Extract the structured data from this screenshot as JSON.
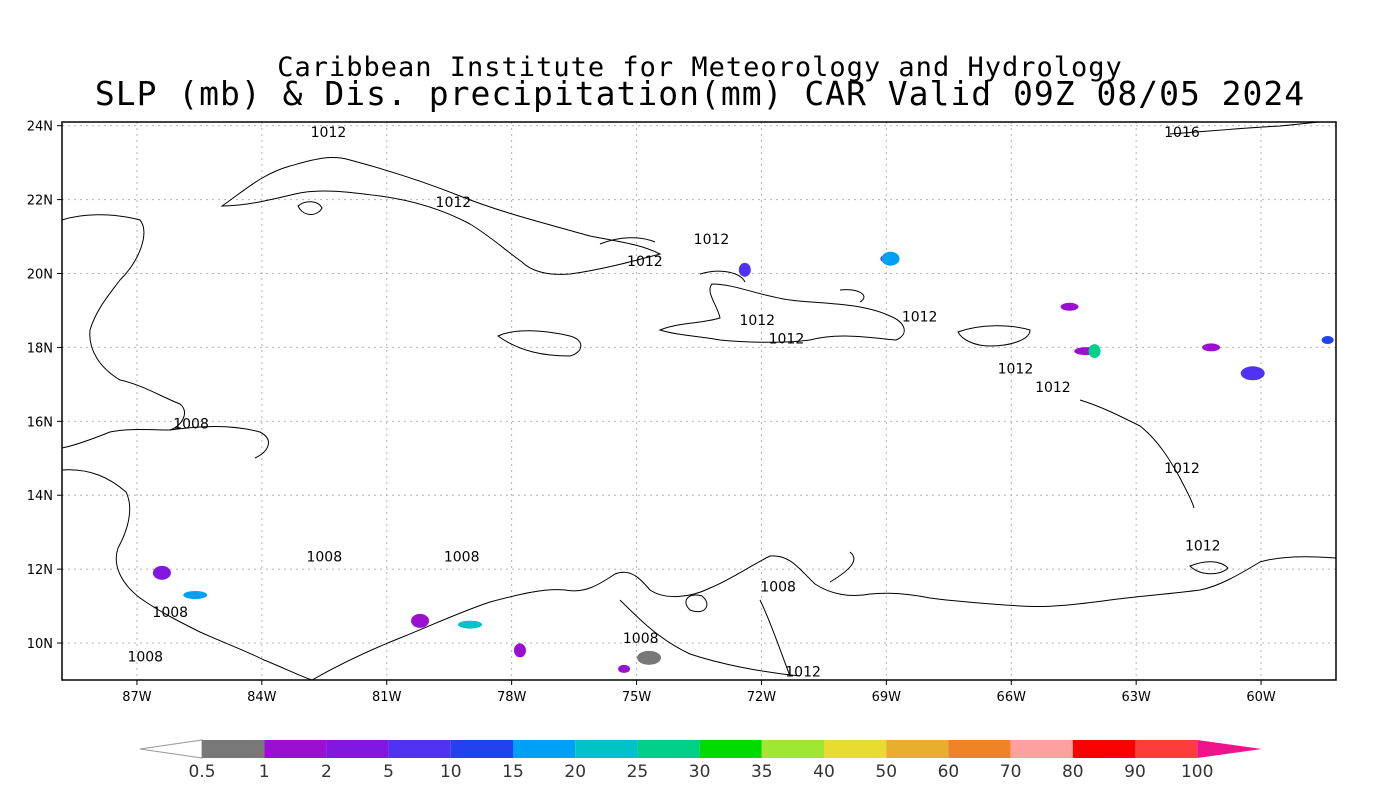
{
  "title_line1": "Caribbean Institute for Meteorology and Hydrology",
  "title_line2": "SLP (mb) & Dis. precipitation(mm) CAR Valid 09Z 08/05 2024",
  "lon_ticks": [
    "87W",
    "84W",
    "81W",
    "78W",
    "75W",
    "72W",
    "69W",
    "66W",
    "63W",
    "60W"
  ],
  "lat_ticks": [
    "24N",
    "22N",
    "20N",
    "18N",
    "16N",
    "14N",
    "12N",
    "10N"
  ],
  "isobar_labels": [
    {
      "text": "1012",
      "lon": -82.4,
      "lat": 23.7
    },
    {
      "text": "1016",
      "lon": -61.9,
      "lat": 23.7
    },
    {
      "text": "1012",
      "lon": -79.4,
      "lat": 21.8
    },
    {
      "text": "1012",
      "lon": -73.2,
      "lat": 20.8
    },
    {
      "text": "1012",
      "lon": -74.8,
      "lat": 20.2
    },
    {
      "text": "1012",
      "lon": -72.1,
      "lat": 18.6
    },
    {
      "text": "1012",
      "lon": -68.2,
      "lat": 18.7
    },
    {
      "text": "1012",
      "lon": -71.4,
      "lat": 18.1
    },
    {
      "text": "1012",
      "lon": -65.9,
      "lat": 17.3
    },
    {
      "text": "1012",
      "lon": -65.0,
      "lat": 16.8
    },
    {
      "text": "1012",
      "lon": -61.9,
      "lat": 14.6
    },
    {
      "text": "1012",
      "lon": -61.4,
      "lat": 12.5
    },
    {
      "text": "1008",
      "lon": -85.7,
      "lat": 15.8
    },
    {
      "text": "1008",
      "lon": -82.5,
      "lat": 12.2
    },
    {
      "text": "1008",
      "lon": -79.2,
      "lat": 12.2
    },
    {
      "text": "1008",
      "lon": -71.6,
      "lat": 11.4
    },
    {
      "text": "1008",
      "lon": -86.2,
      "lat": 10.7
    },
    {
      "text": "1008",
      "lon": -74.9,
      "lat": 10.0
    },
    {
      "text": "1008",
      "lon": -86.8,
      "lat": 9.5
    },
    {
      "text": "1012",
      "lon": -71.0,
      "lat": 9.1
    }
  ],
  "colorbar": {
    "labels": [
      "0.5",
      "1",
      "2",
      "5",
      "10",
      "15",
      "20",
      "25",
      "30",
      "35",
      "40",
      "50",
      "60",
      "70",
      "80",
      "90",
      "100"
    ],
    "colors": [
      "#787878",
      "#9b0fd0",
      "#8217e0",
      "#5232f2",
      "#2242f0",
      "#00a0f7",
      "#00c3c8",
      "#00d089",
      "#00dc00",
      "#a0e632",
      "#e6dc32",
      "#e6af2d",
      "#f08228",
      "#ffa0a0",
      "#fa0000",
      "#ff3c3c"
    ],
    "end_low_color": "#ffffff",
    "end_high_color": "#f0148c"
  },
  "precip_blobs": [
    {
      "lon": -69.0,
      "lat": 20.4,
      "color": "#9b0fd0"
    },
    {
      "lon": -68.9,
      "lat": 20.4,
      "color": "#00a0f7"
    },
    {
      "lon": -64.2,
      "lat": 17.9,
      "color": "#9b0fd0"
    },
    {
      "lon": -64.0,
      "lat": 17.9,
      "color": "#00d089"
    },
    {
      "lon": -61.2,
      "lat": 18.0,
      "color": "#9b0fd0"
    },
    {
      "lon": -60.2,
      "lat": 17.3,
      "color": "#5232f2"
    },
    {
      "lon": -58.4,
      "lat": 18.2,
      "color": "#2242f0"
    },
    {
      "lon": -86.4,
      "lat": 11.9,
      "color": "#8217e0"
    },
    {
      "lon": -85.6,
      "lat": 11.3,
      "color": "#00a0f7"
    },
    {
      "lon": -72.4,
      "lat": 20.1,
      "color": "#5232f2"
    },
    {
      "lon": -64.6,
      "lat": 19.1,
      "color": "#9b0fd0"
    },
    {
      "lon": -74.7,
      "lat": 9.6,
      "color": "#787878"
    },
    {
      "lon": -75.3,
      "lat": 9.3,
      "color": "#9b0fd0"
    },
    {
      "lon": -80.2,
      "lat": 10.6,
      "color": "#9b0fd0"
    },
    {
      "lon": -79.0,
      "lat": 10.5,
      "color": "#00c3c8"
    },
    {
      "lon": -77.8,
      "lat": 9.8,
      "color": "#9b0fd0"
    }
  ]
}
